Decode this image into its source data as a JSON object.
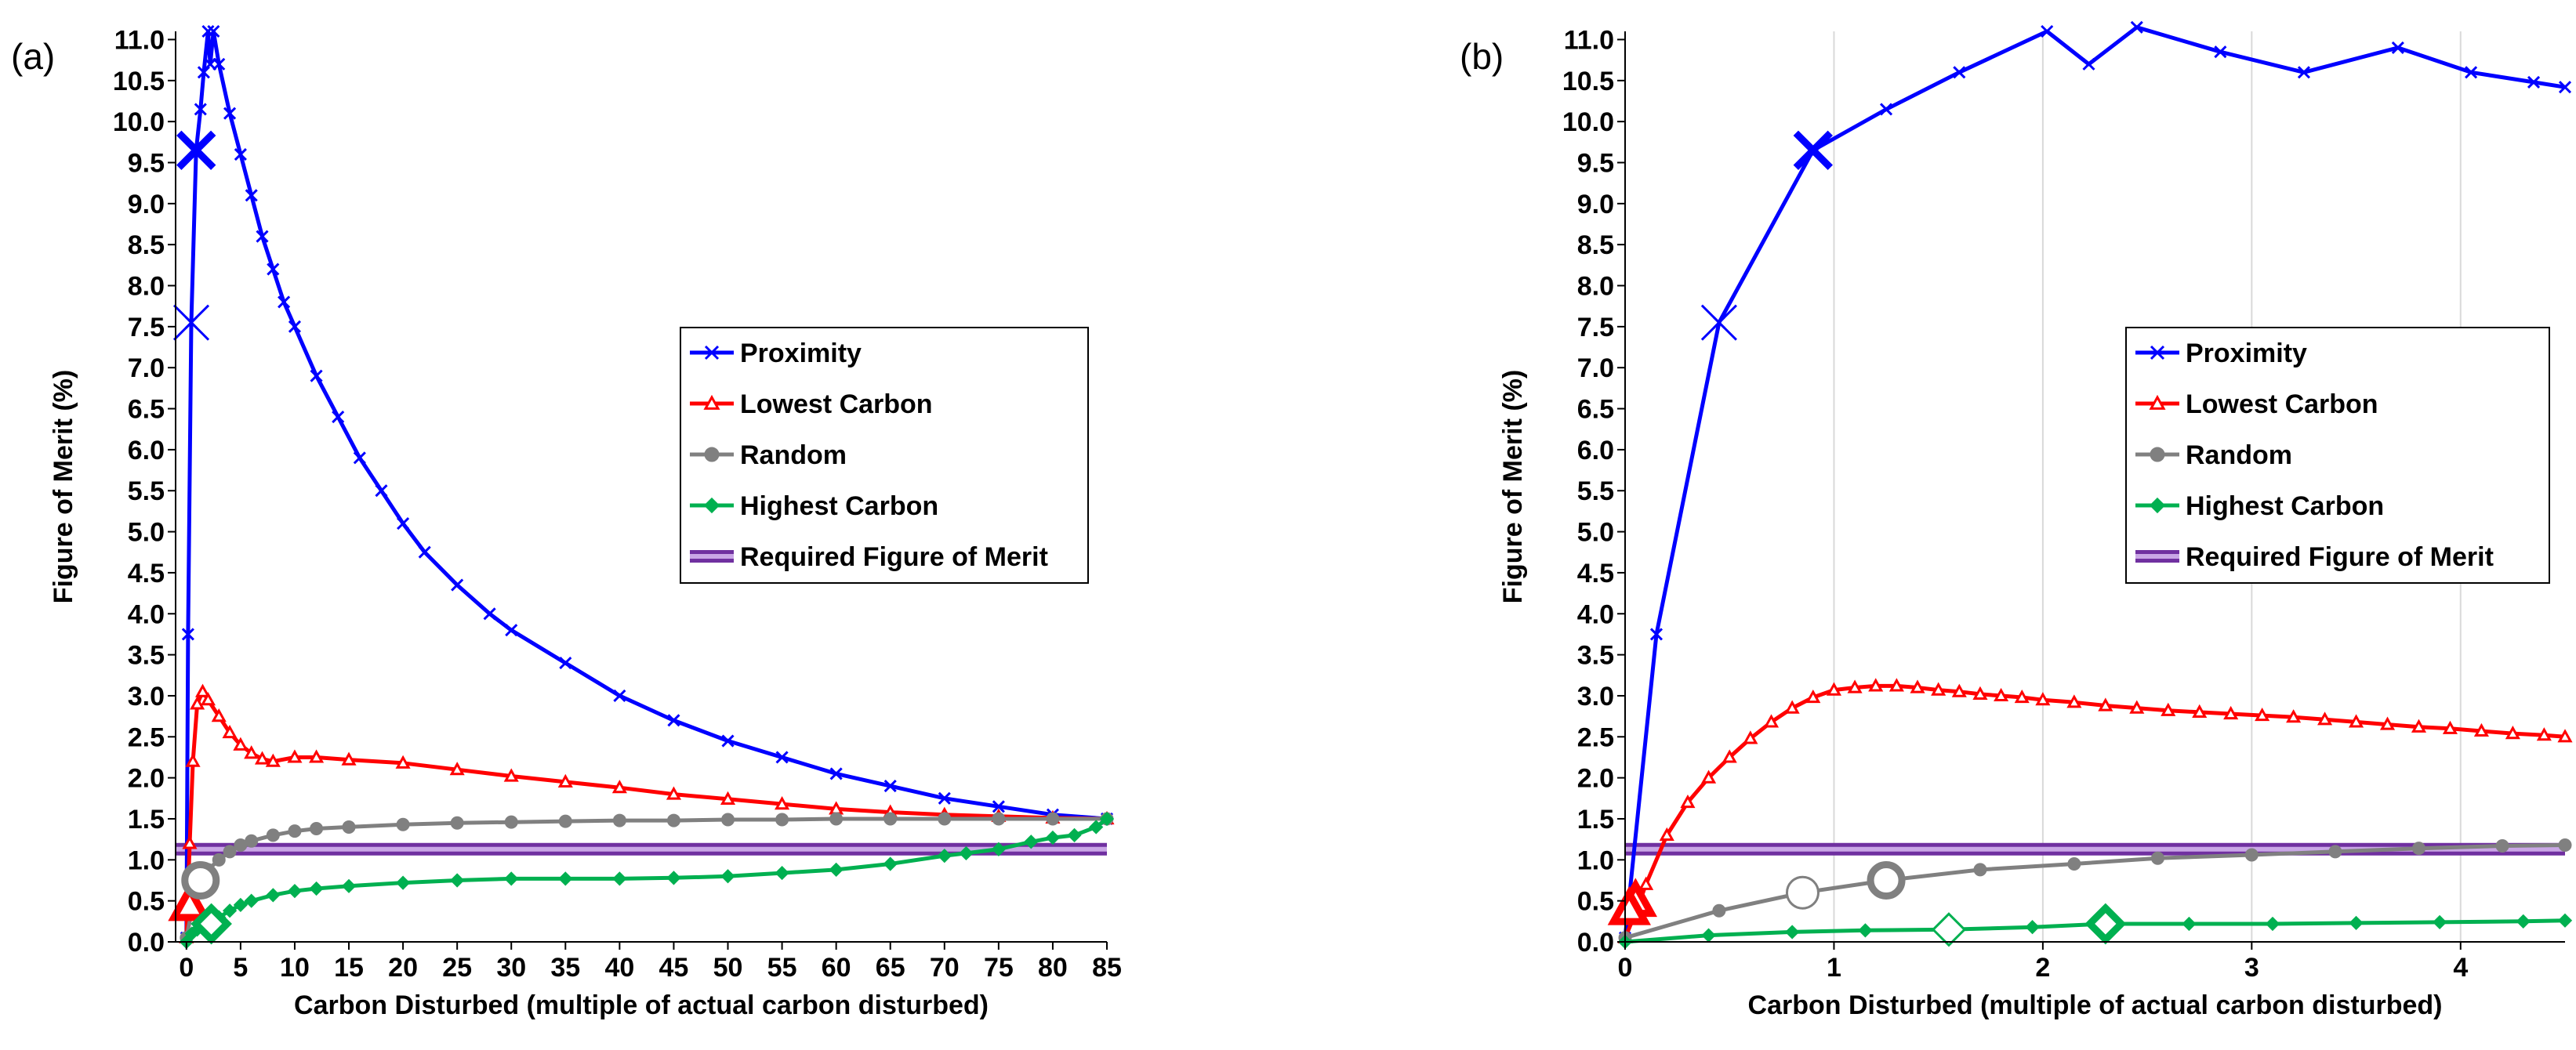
{
  "chart_data": [
    {
      "panel_label": "(a)",
      "type": "line",
      "xlabel": "Carbon Disturbed (multiple of actual carbon disturbed)",
      "ylabel": "Figure of Merit (%)",
      "xlim": [
        -1,
        85
      ],
      "ylim": [
        0,
        11.1
      ],
      "xticks": [
        0,
        5,
        10,
        15,
        20,
        25,
        30,
        35,
        40,
        45,
        50,
        55,
        60,
        65,
        70,
        75,
        80,
        85
      ],
      "xtick_labels": [
        "0",
        "5",
        "10",
        "15",
        "20",
        "25",
        "30",
        "35",
        "40",
        "45",
        "50",
        "55",
        "60",
        "65",
        "70",
        "75",
        "80",
        "85"
      ],
      "yticks": [
        0,
        0.5,
        1,
        1.5,
        2,
        2.5,
        3,
        3.5,
        4,
        4.5,
        5,
        5.5,
        6,
        6.5,
        7,
        7.5,
        8,
        8.5,
        9,
        9.5,
        10,
        10.5,
        11
      ],
      "ytick_labels": [
        "0.0",
        "0.5",
        "1.0",
        "1.5",
        "2.0",
        "2.5",
        "3.0",
        "3.5",
        "4.0",
        "4.5",
        "5.0",
        "5.5",
        "6.0",
        "6.5",
        "7.0",
        "7.5",
        "8.0",
        "8.5",
        "9.0",
        "9.5",
        "10.0",
        "10.5",
        "11.0"
      ],
      "vertical_gridlines": false,
      "legend_position": "right-middle",
      "reference_line": {
        "name": "Required Figure of Merit",
        "y": 1.13,
        "color": "#7030a0"
      },
      "series": [
        {
          "name": "Proximity",
          "color": "#0000ff",
          "marker": "x",
          "x": [
            0,
            0.15,
            0.45,
            0.9,
            1.3,
            1.6,
            2,
            2.2,
            2.5,
            3,
            4,
            5,
            6,
            7,
            8,
            9,
            10,
            12,
            14,
            16,
            18,
            20,
            22,
            25,
            28,
            30,
            35,
            40,
            45,
            50,
            55,
            60,
            65,
            70,
            75,
            80,
            85
          ],
          "y": [
            0.05,
            3.75,
            7.55,
            9.65,
            10.15,
            10.6,
            11.1,
            10.7,
            11.1,
            10.7,
            10.1,
            9.6,
            9.1,
            8.6,
            8.2,
            7.8,
            7.5,
            6.9,
            6.4,
            5.9,
            5.5,
            5.1,
            4.75,
            4.35,
            4.0,
            3.8,
            3.4,
            3.0,
            2.7,
            2.45,
            2.25,
            2.05,
            1.9,
            1.75,
            1.65,
            1.55,
            1.5
          ]
        },
        {
          "name": "Lowest Carbon",
          "color": "#ff0000",
          "marker": "triangle",
          "x": [
            0,
            0.1,
            0.3,
            0.6,
            1,
            1.5,
            2,
            3,
            4,
            5,
            6,
            7,
            8,
            10,
            12,
            15,
            20,
            25,
            30,
            35,
            40,
            45,
            50,
            55,
            60,
            65,
            70,
            75,
            80,
            85
          ],
          "y": [
            0.05,
            0.45,
            1.2,
            2.2,
            2.9,
            3.05,
            2.95,
            2.75,
            2.55,
            2.4,
            2.3,
            2.23,
            2.2,
            2.25,
            2.25,
            2.22,
            2.18,
            2.1,
            2.02,
            1.95,
            1.88,
            1.8,
            1.74,
            1.68,
            1.62,
            1.58,
            1.55,
            1.53,
            1.51,
            1.5
          ]
        },
        {
          "name": "Random",
          "color": "#808080",
          "marker": "circle",
          "x": [
            0,
            0.5,
            1,
            1.5,
            2,
            3,
            4,
            5,
            6,
            8,
            10,
            12,
            15,
            20,
            25,
            30,
            35,
            40,
            45,
            50,
            55,
            60,
            65,
            70,
            75,
            80,
            85
          ],
          "y": [
            0.05,
            0.38,
            0.6,
            0.75,
            0.88,
            1.0,
            1.1,
            1.18,
            1.23,
            1.3,
            1.35,
            1.38,
            1.4,
            1.43,
            1.45,
            1.46,
            1.47,
            1.48,
            1.48,
            1.49,
            1.49,
            1.5,
            1.5,
            1.5,
            1.5,
            1.5,
            1.5
          ]
        },
        {
          "name": "Highest Carbon",
          "color": "#00b050",
          "marker": "diamond",
          "x": [
            0,
            0.5,
            1,
            2,
            3,
            4,
            5,
            6,
            8,
            10,
            12,
            15,
            20,
            25,
            30,
            35,
            40,
            45,
            50,
            55,
            60,
            65,
            70,
            72,
            75,
            78,
            80,
            82,
            84,
            85
          ],
          "y": [
            0.0,
            0.1,
            0.15,
            0.22,
            0.3,
            0.38,
            0.45,
            0.5,
            0.57,
            0.62,
            0.65,
            0.68,
            0.72,
            0.75,
            0.77,
            0.77,
            0.77,
            0.78,
            0.8,
            0.84,
            0.88,
            0.95,
            1.05,
            1.08,
            1.13,
            1.22,
            1.27,
            1.3,
            1.4,
            1.5
          ]
        }
      ],
      "highlight_markers": [
        {
          "series": "Proximity",
          "x": 0.9,
          "y": 9.65,
          "style": "bold"
        },
        {
          "series": "Proximity",
          "x": 0.45,
          "y": 7.55,
          "style": "thin"
        },
        {
          "series": "Lowest Carbon",
          "x": 0.3,
          "y": 0.45,
          "style": "bold"
        },
        {
          "series": "Random",
          "x": 1.3,
          "y": 0.75,
          "style": "bold"
        },
        {
          "series": "Highest Carbon",
          "x": 2.3,
          "y": 0.22,
          "style": "bold"
        }
      ]
    },
    {
      "panel_label": "(b)",
      "type": "line",
      "xlabel": "Carbon Disturbed (multiple of actual carbon disturbed)",
      "ylabel": "Figure of Merit (%)",
      "xlim": [
        0,
        4.5
      ],
      "ylim": [
        0,
        11.1
      ],
      "xticks": [
        0,
        1,
        2,
        3,
        4
      ],
      "xtick_labels": [
        "0",
        "1",
        "2",
        "3",
        "4"
      ],
      "yticks": [
        0,
        0.5,
        1,
        1.5,
        2,
        2.5,
        3,
        3.5,
        4,
        4.5,
        5,
        5.5,
        6,
        6.5,
        7,
        7.5,
        8,
        8.5,
        9,
        9.5,
        10,
        10.5,
        11
      ],
      "ytick_labels": [
        "0.0",
        "0.5",
        "1.0",
        "1.5",
        "2.0",
        "2.5",
        "3.0",
        "3.5",
        "4.0",
        "4.5",
        "5.0",
        "5.5",
        "6.0",
        "6.5",
        "7.0",
        "7.5",
        "8.0",
        "8.5",
        "9.0",
        "9.5",
        "10.0",
        "10.5",
        "11.0"
      ],
      "vertical_gridlines": true,
      "legend_position": "right-middle",
      "reference_line": {
        "name": "Required Figure of Merit",
        "y": 1.13,
        "color": "#7030a0"
      },
      "series": [
        {
          "name": "Proximity",
          "color": "#0000ff",
          "marker": "x",
          "x": [
            0,
            0.15,
            0.45,
            0.9,
            1.25,
            1.6,
            2.02,
            2.22,
            2.45,
            2.85,
            3.25,
            3.7,
            4.05,
            4.35,
            4.5
          ],
          "y": [
            0.05,
            3.75,
            7.55,
            9.65,
            10.15,
            10.6,
            11.1,
            10.7,
            11.15,
            10.85,
            10.6,
            10.9,
            10.6,
            10.48,
            10.42
          ]
        },
        {
          "name": "Lowest Carbon",
          "color": "#ff0000",
          "marker": "triangle",
          "x": [
            0,
            0.05,
            0.1,
            0.2,
            0.3,
            0.4,
            0.5,
            0.6,
            0.7,
            0.8,
            0.9,
            1.0,
            1.1,
            1.2,
            1.3,
            1.4,
            1.5,
            1.6,
            1.7,
            1.8,
            1.9,
            2.0,
            2.15,
            2.3,
            2.45,
            2.6,
            2.75,
            2.9,
            3.05,
            3.2,
            3.35,
            3.5,
            3.65,
            3.8,
            3.95,
            4.1,
            4.25,
            4.4,
            4.5
          ],
          "y": [
            0.05,
            0.35,
            0.7,
            1.3,
            1.7,
            2.0,
            2.25,
            2.48,
            2.68,
            2.85,
            2.98,
            3.07,
            3.1,
            3.12,
            3.12,
            3.1,
            3.07,
            3.05,
            3.02,
            3.0,
            2.98,
            2.95,
            2.92,
            2.88,
            2.85,
            2.82,
            2.8,
            2.78,
            2.76,
            2.74,
            2.71,
            2.68,
            2.65,
            2.62,
            2.6,
            2.57,
            2.54,
            2.52,
            2.5
          ]
        },
        {
          "name": "Random",
          "color": "#808080",
          "marker": "circle",
          "x": [
            0,
            0.45,
            0.85,
            1.25,
            1.7,
            2.15,
            2.55,
            3.0,
            3.4,
            3.8,
            4.2,
            4.5
          ],
          "y": [
            0.05,
            0.38,
            0.6,
            0.75,
            0.88,
            0.95,
            1.02,
            1.06,
            1.1,
            1.14,
            1.17,
            1.18
          ]
        },
        {
          "name": "Highest Carbon",
          "color": "#00b050",
          "marker": "diamond",
          "x": [
            0,
            0.4,
            0.8,
            1.15,
            1.55,
            1.95,
            2.3,
            2.7,
            3.1,
            3.5,
            3.9,
            4.3,
            4.5
          ],
          "y": [
            0.0,
            0.08,
            0.12,
            0.14,
            0.15,
            0.18,
            0.22,
            0.22,
            0.22,
            0.23,
            0.24,
            0.25,
            0.26
          ]
        }
      ],
      "highlight_markers": [
        {
          "series": "Proximity",
          "x": 0.9,
          "y": 9.65,
          "style": "bold"
        },
        {
          "series": "Proximity",
          "x": 0.45,
          "y": 7.55,
          "style": "thin"
        },
        {
          "series": "Lowest Carbon",
          "x": 0.05,
          "y": 0.5,
          "style": "bold"
        },
        {
          "series": "Lowest Carbon",
          "x": 0.02,
          "y": 0.4,
          "style": "bold"
        },
        {
          "series": "Random",
          "x": 1.25,
          "y": 0.75,
          "style": "bold"
        },
        {
          "series": "Random",
          "x": 0.85,
          "y": 0.6,
          "style": "thin"
        },
        {
          "series": "Highest Carbon",
          "x": 2.3,
          "y": 0.22,
          "style": "bold"
        },
        {
          "series": "Highest Carbon",
          "x": 1.55,
          "y": 0.15,
          "style": "thin"
        }
      ]
    }
  ]
}
